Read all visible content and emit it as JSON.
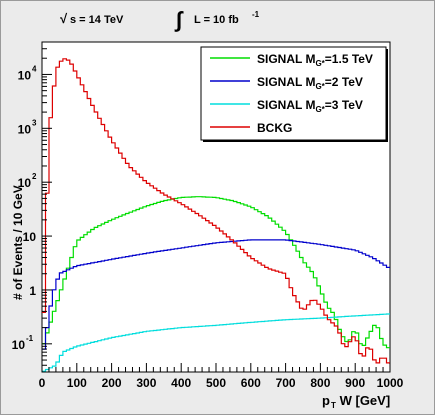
{
  "chart_data": {
    "type": "line",
    "title": "",
    "header": {
      "sqrt_s_label": "s = 14 TeV",
      "sqrt_s_symbol": "√",
      "lumi_symbol": "∫",
      "lumi_label": "L = 10 fb",
      "lumi_exponent": "-1"
    },
    "xlabel_main": "p",
    "xlabel_sub": "T",
    "xlabel_rest": " W [GeV]",
    "ylabel": "# of Events / 10 GeV",
    "xlim": [
      0,
      1000
    ],
    "ylim": [
      0.03,
      40000
    ],
    "y_scale": "log",
    "x_ticks": [
      "0",
      "100",
      "200",
      "300",
      "400",
      "500",
      "600",
      "700",
      "800",
      "900",
      "1000"
    ],
    "y_ticks": [
      {
        "value": 0.1,
        "base": "10",
        "exp": "-1"
      },
      {
        "value": 1,
        "base": "1",
        "exp": ""
      },
      {
        "value": 10,
        "base": "10",
        "exp": ""
      },
      {
        "value": 100,
        "base": "10",
        "exp": "2"
      },
      {
        "value": 1000,
        "base": "10",
        "exp": "3"
      },
      {
        "value": 10000,
        "base": "10",
        "exp": "4"
      }
    ],
    "grid": false,
    "legend_position": "top-right",
    "series": [
      {
        "name": "SIGNAL M_G*=1.5 TeV",
        "legend_main": "SIGNAL M",
        "legend_sub": "G*",
        "legend_rest": "=1.5 TeV",
        "color": "#00dd00",
        "points": [
          [
            0,
            0.08
          ],
          [
            100,
            8
          ],
          [
            150,
            14
          ],
          [
            200,
            20
          ],
          [
            250,
            27
          ],
          [
            300,
            36
          ],
          [
            350,
            45
          ],
          [
            400,
            52
          ],
          [
            450,
            54
          ],
          [
            500,
            52
          ],
          [
            550,
            45
          ],
          [
            600,
            35
          ],
          [
            650,
            23
          ],
          [
            700,
            12
          ],
          [
            730,
            6
          ],
          [
            750,
            3.5
          ],
          [
            780,
            2
          ],
          [
            800,
            1
          ],
          [
            820,
            0.5
          ],
          [
            840,
            0.35
          ],
          [
            860,
            0.15
          ],
          [
            880,
            0.1
          ],
          [
            900,
            0.2
          ],
          [
            920,
            0.08
          ],
          [
            940,
            0.15
          ],
          [
            960,
            0.25
          ],
          [
            980,
            0.1
          ],
          [
            1000,
            0.08
          ]
        ]
      },
      {
        "name": "SIGNAL M_G*=2 TeV",
        "legend_main": "SIGNAL M",
        "legend_sub": "G*",
        "legend_rest": "=2 TeV",
        "color": "#0000cc",
        "points": [
          [
            0,
            0.05
          ],
          [
            30,
            0.8
          ],
          [
            50,
            2
          ],
          [
            100,
            2.8
          ],
          [
            200,
            3.7
          ],
          [
            300,
            4.8
          ],
          [
            400,
            6
          ],
          [
            500,
            7.5
          ],
          [
            600,
            8.5
          ],
          [
            700,
            8.5
          ],
          [
            800,
            7
          ],
          [
            900,
            5.5
          ],
          [
            950,
            4
          ],
          [
            1000,
            2.5
          ]
        ]
      },
      {
        "name": "SIGNAL M_G*=3 TeV",
        "legend_main": "SIGNAL M",
        "legend_sub": "G*",
        "legend_rest": "=3 TeV",
        "color": "#00dddd",
        "points": [
          [
            0,
            0.03
          ],
          [
            40,
            0.04
          ],
          [
            60,
            0.07
          ],
          [
            100,
            0.09
          ],
          [
            200,
            0.13
          ],
          [
            300,
            0.17
          ],
          [
            400,
            0.2
          ],
          [
            500,
            0.22
          ],
          [
            600,
            0.25
          ],
          [
            700,
            0.28
          ],
          [
            800,
            0.3
          ],
          [
            900,
            0.33
          ],
          [
            1000,
            0.36
          ]
        ]
      },
      {
        "name": "BCKG",
        "legend_main": "BCKG",
        "legend_sub": "",
        "legend_rest": "",
        "color": "#dd0000",
        "points": [
          [
            0,
            0.03
          ],
          [
            20,
            800
          ],
          [
            40,
            12000
          ],
          [
            60,
            20000
          ],
          [
            80,
            18000
          ],
          [
            100,
            10000
          ],
          [
            150,
            2300
          ],
          [
            200,
            600
          ],
          [
            250,
            200
          ],
          [
            300,
            100
          ],
          [
            350,
            60
          ],
          [
            400,
            40
          ],
          [
            450,
            25
          ],
          [
            500,
            15
          ],
          [
            550,
            8
          ],
          [
            600,
            4
          ],
          [
            650,
            2.5
          ],
          [
            700,
            2
          ],
          [
            720,
            0.9
          ],
          [
            750,
            0.4
          ],
          [
            780,
            0.7
          ],
          [
            800,
            0.5
          ],
          [
            820,
            0.3
          ],
          [
            850,
            0.2
          ],
          [
            870,
            0.08
          ],
          [
            900,
            0.15
          ],
          [
            920,
            0.05
          ],
          [
            940,
            0.1
          ],
          [
            960,
            0.04
          ],
          [
            980,
            0.06
          ],
          [
            1000,
            0.04
          ]
        ]
      }
    ]
  }
}
